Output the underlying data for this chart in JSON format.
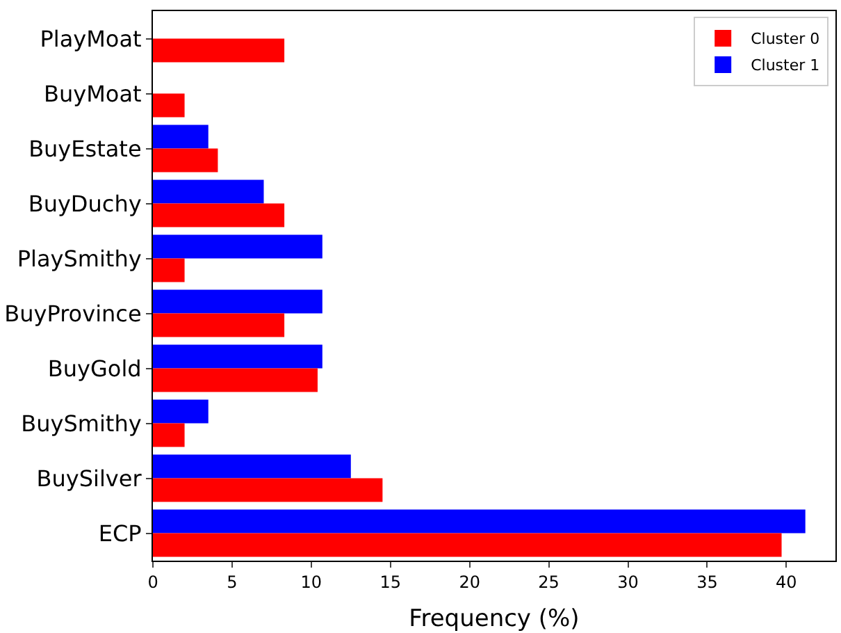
{
  "chart_data": {
    "type": "bar",
    "orientation": "horizontal",
    "xlabel": "Frequency (%)",
    "categories": [
      "PlayMoat",
      "BuyMoat",
      "BuyEstate",
      "BuyDuchy",
      "PlaySmithy",
      "BuyProvince",
      "BuyGold",
      "BuySmithy",
      "BuySilver",
      "ECP"
    ],
    "series": [
      {
        "name": "Cluster 0",
        "color": "#ff0000",
        "values": [
          8.3,
          2.0,
          4.1,
          8.3,
          2.0,
          8.3,
          10.4,
          2.0,
          14.5,
          39.7
        ]
      },
      {
        "name": "Cluster 1",
        "color": "#0000ff",
        "values": [
          0,
          0,
          3.5,
          7.0,
          10.7,
          10.7,
          10.7,
          3.5,
          12.5,
          41.2
        ]
      }
    ],
    "xlim": [
      0,
      43.1
    ],
    "xticks": [
      0,
      5,
      10,
      15,
      20,
      25,
      30,
      35,
      40
    ],
    "legend": "top right"
  }
}
